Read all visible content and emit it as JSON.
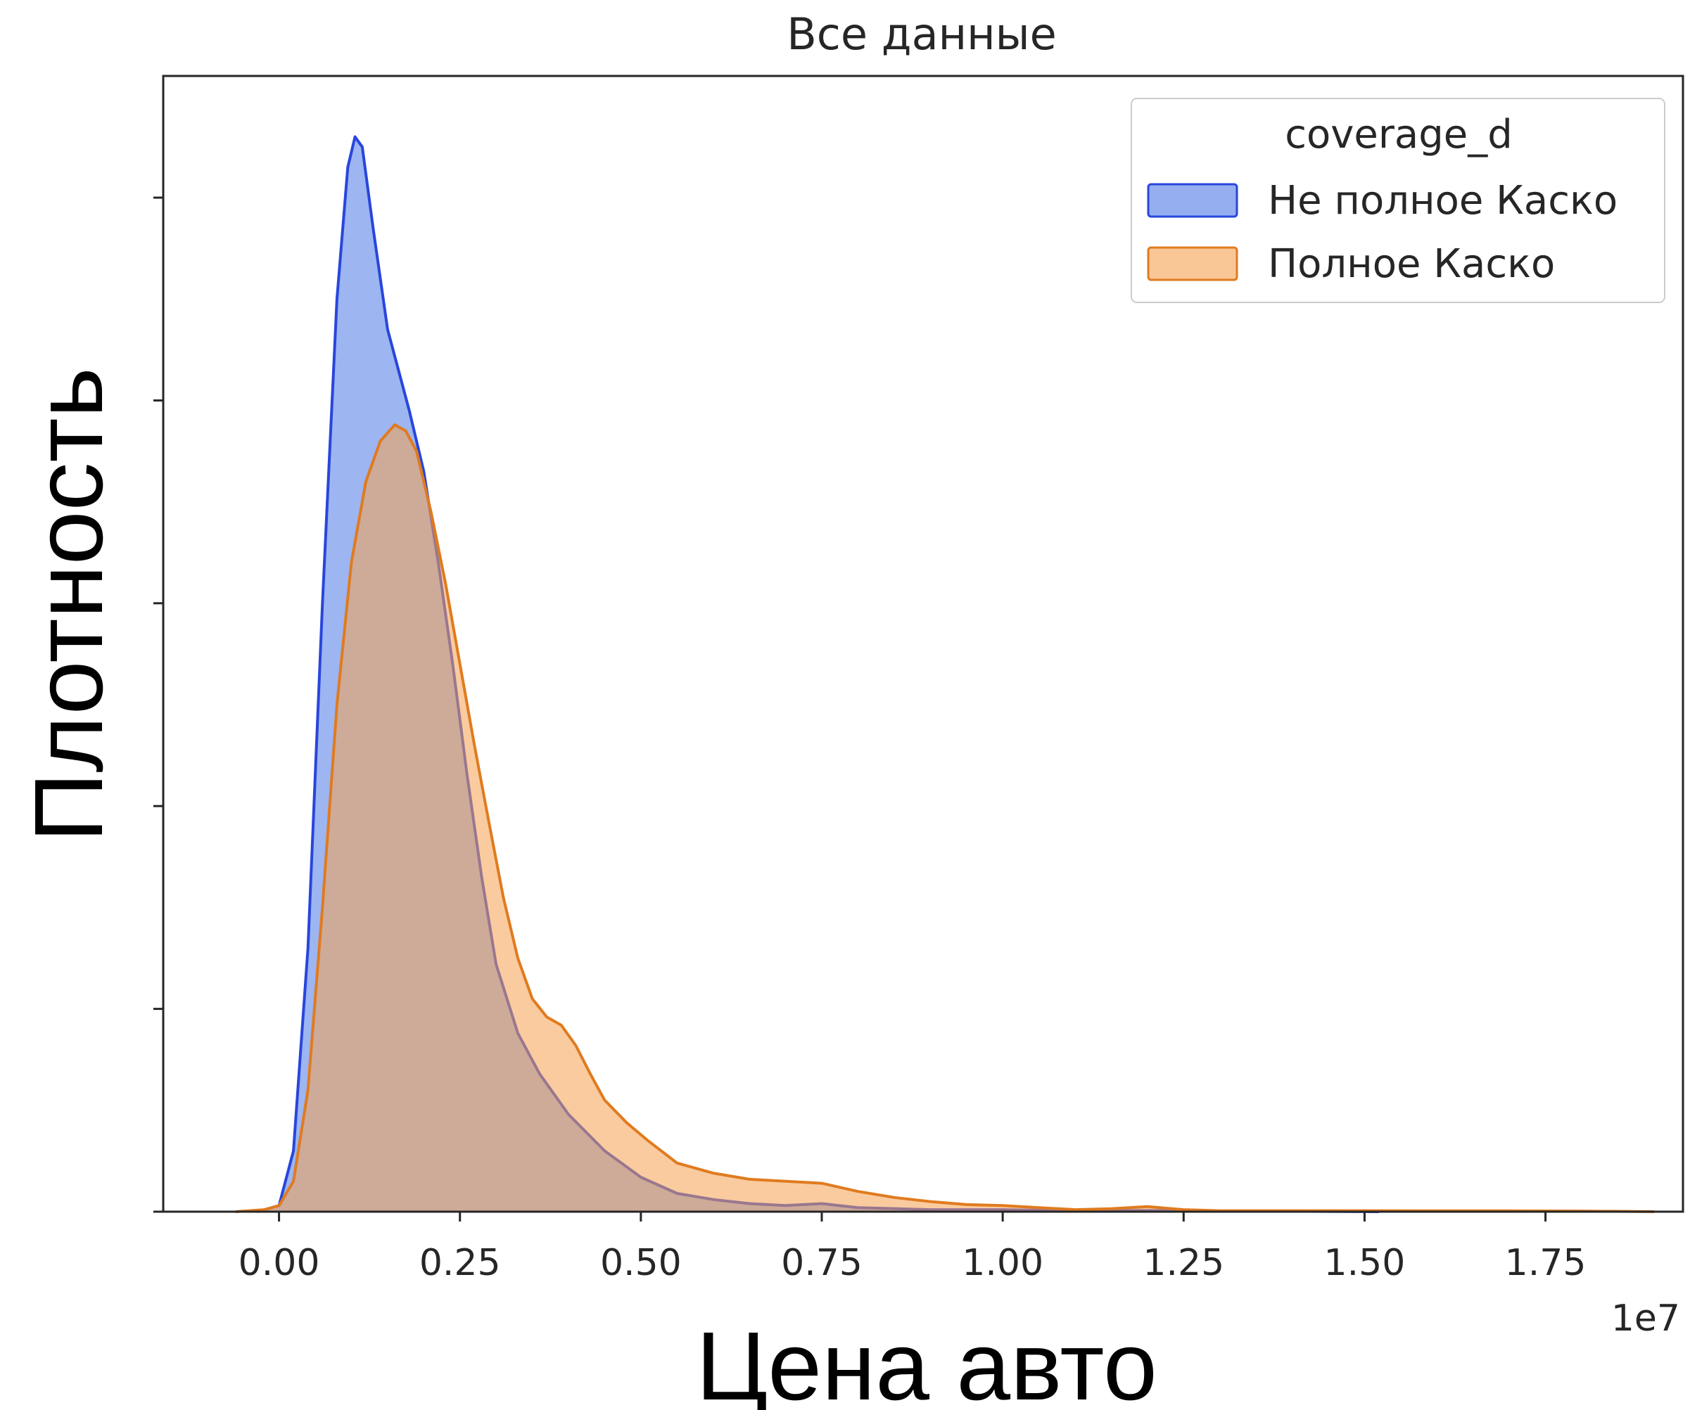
{
  "chart_data": {
    "type": "area",
    "title": "Все данные",
    "xlabel": "Цена авто",
    "ylabel": "Плотность",
    "x_offset_label": "1e7",
    "xlim": [
      -0.16,
      1.94
    ],
    "ylim": [
      0,
      5.6
    ],
    "x_ticks": [
      0.0,
      0.25,
      0.5,
      0.75,
      1.0,
      1.25,
      1.5,
      1.75
    ],
    "x_tick_labels": [
      "0.00",
      "0.25",
      "0.50",
      "0.75",
      "1.00",
      "1.25",
      "1.50",
      "1.75"
    ],
    "y_ticks": [
      1,
      2,
      3,
      4,
      5
    ],
    "grid": false,
    "legend": {
      "title": "coverage_d",
      "placement": "top-right"
    },
    "series": [
      {
        "name": "Не полное Каско",
        "line_color": "#2846dc",
        "fill_color": "#4c78e6",
        "x": [
          -0.03,
          0.0,
          0.02,
          0.04,
          0.06,
          0.08,
          0.095,
          0.105,
          0.115,
          0.13,
          0.15,
          0.18,
          0.2,
          0.22,
          0.24,
          0.26,
          0.28,
          0.3,
          0.33,
          0.36,
          0.4,
          0.45,
          0.5,
          0.55,
          0.6,
          0.65,
          0.7,
          0.75,
          0.8,
          0.9,
          1.0,
          1.1,
          1.2,
          1.3,
          1.4,
          1.52
        ],
        "y": [
          0.0,
          0.03,
          0.3,
          1.3,
          3.0,
          4.5,
          5.15,
          5.3,
          5.25,
          4.85,
          4.35,
          3.95,
          3.65,
          3.2,
          2.7,
          2.15,
          1.65,
          1.22,
          0.88,
          0.68,
          0.48,
          0.3,
          0.17,
          0.09,
          0.06,
          0.04,
          0.03,
          0.04,
          0.02,
          0.01,
          0.01,
          0.004,
          0.006,
          0.003,
          0.002,
          0.0
        ]
      },
      {
        "name": "Полное Каско",
        "line_color": "#e07b1f",
        "fill_color": "#f5a050",
        "x": [
          -0.06,
          -0.02,
          0.0,
          0.02,
          0.04,
          0.06,
          0.08,
          0.1,
          0.12,
          0.14,
          0.16,
          0.175,
          0.19,
          0.21,
          0.23,
          0.25,
          0.27,
          0.29,
          0.31,
          0.33,
          0.35,
          0.37,
          0.39,
          0.41,
          0.43,
          0.45,
          0.48,
          0.51,
          0.55,
          0.6,
          0.65,
          0.7,
          0.75,
          0.8,
          0.85,
          0.9,
          0.95,
          1.0,
          1.05,
          1.1,
          1.15,
          1.2,
          1.25,
          1.3,
          1.4,
          1.5,
          1.6,
          1.7,
          1.8,
          1.9
        ],
        "y": [
          0.0,
          0.01,
          0.03,
          0.15,
          0.6,
          1.5,
          2.5,
          3.2,
          3.6,
          3.8,
          3.88,
          3.85,
          3.75,
          3.45,
          3.1,
          2.7,
          2.3,
          1.92,
          1.55,
          1.25,
          1.05,
          0.96,
          0.92,
          0.82,
          0.68,
          0.55,
          0.44,
          0.35,
          0.24,
          0.19,
          0.16,
          0.15,
          0.14,
          0.1,
          0.07,
          0.05,
          0.035,
          0.03,
          0.02,
          0.01,
          0.015,
          0.025,
          0.01,
          0.005,
          0.005,
          0.005,
          0.004,
          0.004,
          0.003,
          0.0
        ]
      }
    ]
  }
}
